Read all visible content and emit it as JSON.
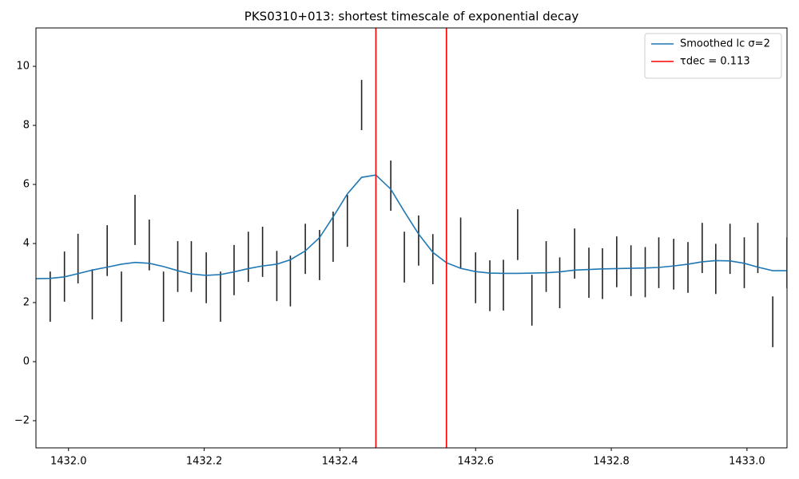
{
  "chart_data": {
    "type": "line",
    "title": "PKS0310+013: shortest timescale of exponential decay",
    "xlim": [
      1431.952,
      1433.059
    ],
    "ylim": [
      -2.92,
      11.3
    ],
    "xticks": [
      {
        "value": 1432.0,
        "label": "1432.0"
      },
      {
        "value": 1432.2,
        "label": "1432.2"
      },
      {
        "value": 1432.4,
        "label": "1432.4"
      },
      {
        "value": 1432.6,
        "label": "1432.6"
      },
      {
        "value": 1432.8,
        "label": "1432.8"
      },
      {
        "value": 1433.0,
        "label": "1433.0"
      }
    ],
    "yticks": [
      {
        "value": -2,
        "label": "−2"
      },
      0,
      2,
      4,
      6,
      8,
      10
    ],
    "grid": false,
    "legend": "upper right",
    "series": [
      {
        "kind": "errorbar",
        "color": "#222222",
        "x": [
          1431.973,
          1431.994,
          1432.014,
          1432.035,
          1432.057,
          1432.078,
          1432.098,
          1432.119,
          1432.14,
          1432.161,
          1432.181,
          1432.203,
          1432.224,
          1432.244,
          1432.265,
          1432.286,
          1432.307,
          1432.327,
          1432.349,
          1432.37,
          1432.39,
          1432.411,
          1432.432,
          1432.475,
          1432.495,
          1432.516,
          1432.537,
          1432.578,
          1432.6,
          1432.621,
          1432.641,
          1432.662,
          1432.683,
          1432.704,
          1432.724,
          1432.746,
          1432.767,
          1432.787,
          1432.808,
          1432.829,
          1432.85,
          1432.87,
          1432.892,
          1432.913,
          1432.934,
          1432.954,
          1432.975,
          1432.996,
          1433.016,
          1433.038,
          1433.059
        ],
        "values": [
          2.2,
          2.88,
          3.49,
          2.28,
          3.76,
          2.2,
          4.8,
          3.95,
          2.2,
          3.22,
          3.22,
          2.84,
          2.2,
          3.1,
          3.55,
          3.72,
          2.9,
          2.73,
          3.82,
          3.61,
          4.23,
          4.77,
          8.69,
          5.96,
          3.54,
          4.1,
          3.47,
          4.02,
          2.84,
          2.57,
          2.59,
          4.3,
          2.08,
          3.22,
          2.67,
          3.66,
          3.01,
          2.98,
          3.38,
          3.08,
          3.03,
          3.35,
          3.3,
          3.19,
          3.85,
          3.14,
          3.82,
          3.35,
          3.85,
          1.35,
          3.35
        ],
        "errors": [
          0.85,
          0.85,
          0.84,
          0.85,
          0.86,
          0.85,
          0.85,
          0.86,
          0.85,
          0.86,
          0.86,
          0.86,
          0.85,
          0.85,
          0.85,
          0.85,
          0.85,
          0.86,
          0.85,
          0.85,
          0.85,
          0.88,
          0.85,
          0.85,
          0.86,
          0.85,
          0.85,
          0.86,
          0.86,
          0.86,
          0.86,
          0.86,
          0.86,
          0.86,
          0.86,
          0.85,
          0.85,
          0.86,
          0.86,
          0.86,
          0.85,
          0.86,
          0.86,
          0.86,
          0.85,
          0.85,
          0.85,
          0.86,
          0.85,
          0.86,
          0.86
        ]
      },
      {
        "kind": "line",
        "name": "Smoothed lc σ=2",
        "color": "#1f77b4",
        "x": [
          1431.952,
          1431.973,
          1431.994,
          1432.014,
          1432.035,
          1432.057,
          1432.078,
          1432.098,
          1432.119,
          1432.14,
          1432.161,
          1432.181,
          1432.203,
          1432.224,
          1432.244,
          1432.265,
          1432.286,
          1432.307,
          1432.327,
          1432.349,
          1432.37,
          1432.39,
          1432.411,
          1432.432,
          1432.453,
          1432.475,
          1432.495,
          1432.516,
          1432.537,
          1432.557,
          1432.578,
          1432.6,
          1432.621,
          1432.641,
          1432.662,
          1432.683,
          1432.704,
          1432.724,
          1432.746,
          1432.767,
          1432.787,
          1432.808,
          1432.829,
          1432.85,
          1432.87,
          1432.892,
          1432.913,
          1432.934,
          1432.954,
          1432.975,
          1432.996,
          1433.016,
          1433.038,
          1433.059
        ],
        "values": [
          2.81,
          2.82,
          2.87,
          2.98,
          3.1,
          3.2,
          3.3,
          3.36,
          3.33,
          3.22,
          3.08,
          2.97,
          2.92,
          2.95,
          3.04,
          3.15,
          3.24,
          3.3,
          3.45,
          3.75,
          4.2,
          4.9,
          5.68,
          6.24,
          6.32,
          5.84,
          5.08,
          4.32,
          3.7,
          3.35,
          3.16,
          3.05,
          3.0,
          2.99,
          2.99,
          3.0,
          3.01,
          3.04,
          3.1,
          3.12,
          3.14,
          3.15,
          3.16,
          3.17,
          3.19,
          3.24,
          3.3,
          3.38,
          3.42,
          3.41,
          3.33,
          3.2,
          3.08,
          3.08
        ]
      },
      {
        "kind": "vline",
        "name": "τdec = 0.113",
        "color": "#ff0000",
        "x": [
          1432.453,
          1432.557
        ]
      }
    ]
  }
}
